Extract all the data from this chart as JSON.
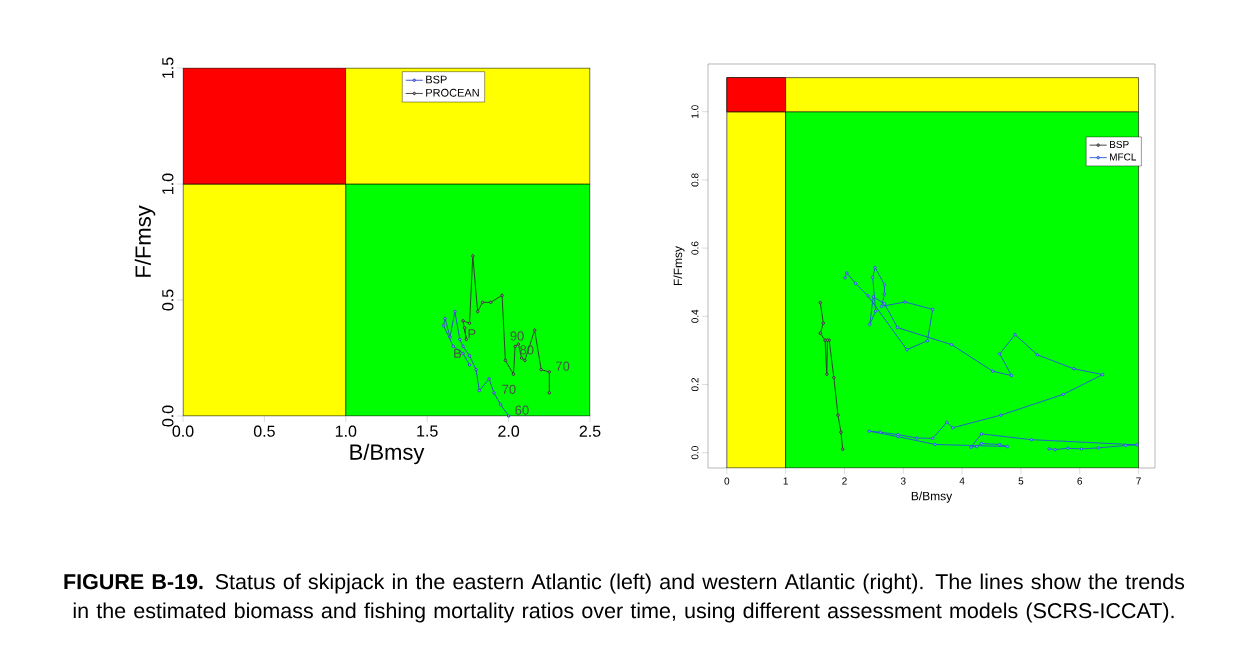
{
  "chart_data": [
    {
      "type": "line",
      "xlabel": "B/Bmsy",
      "ylabel": "F/Fmsy",
      "xlim": [
        0,
        2.5
      ],
      "ylim": [
        0,
        1.5
      ],
      "xticks": [
        {
          "value": 0,
          "label": "0.0"
        },
        {
          "value": 0.5,
          "label": "0.5"
        },
        {
          "value": 1,
          "label": "1.0"
        },
        {
          "value": 1.5,
          "label": "1.5"
        },
        {
          "value": 2,
          "label": "2.0"
        },
        {
          "value": 2.5,
          "label": "2.5"
        }
      ],
      "yticks": [
        {
          "value": 0,
          "label": "0.0"
        },
        {
          "value": 0.5,
          "label": "0.5"
        },
        {
          "value": 1,
          "label": "1.0"
        },
        {
          "value": 1.5,
          "label": "1.5"
        }
      ],
      "marker": "circle",
      "line_style": "solid",
      "legend": "top",
      "bands": [
        {
          "axis": "x",
          "from": 0,
          "to": 1,
          "color": "#ffff00"
        },
        {
          "axis": "x",
          "from": 1,
          "to": 2.5,
          "color": "#00ff00"
        },
        {
          "axis": "y",
          "from": 1,
          "to": 1.5,
          "color": "#ffff00"
        },
        {
          "axis": "x",
          "from": 0,
          "to": 1,
          "color": "#ff0000"
        }
      ],
      "series": [
        {
          "name": "BSP",
          "color": "#3344cc",
          "x": [
            2.0,
            1.95,
            1.91,
            1.88,
            1.82,
            1.8,
            1.76,
            1.72,
            1.7,
            1.67,
            1.64,
            1.61,
            1.6,
            1.66,
            1.72,
            1.76
          ],
          "values": [
            0.0,
            0.05,
            0.1,
            0.16,
            0.11,
            0.2,
            0.26,
            0.3,
            0.33,
            0.45,
            0.34,
            0.42,
            0.39,
            0.3,
            0.27,
            0.22
          ]
        },
        {
          "name": "PROCEAN",
          "color": "#333333",
          "x": [
            2.25,
            2.25,
            2.2,
            2.16,
            2.1,
            2.08,
            2.06,
            2.04,
            2.03,
            1.98,
            1.96,
            1.89,
            1.84,
            1.81,
            1.78,
            1.76,
            1.72,
            1.74,
            1.73
          ],
          "values": [
            0.1,
            0.19,
            0.2,
            0.37,
            0.24,
            0.25,
            0.31,
            0.3,
            0.18,
            0.24,
            0.52,
            0.49,
            0.49,
            0.45,
            0.69,
            0.4,
            0.41,
            0.33,
            0.38
          ]
        }
      ],
      "annotations": [
        {
          "text": "60",
          "x": 2.03,
          "y": 0.0
        },
        {
          "text": "70",
          "x": 1.95,
          "y": 0.09
        },
        {
          "text": "90",
          "x": 2.0,
          "y": 0.32
        },
        {
          "text": "80",
          "x": 2.06,
          "y": 0.26
        },
        {
          "text": "70",
          "x": 2.28,
          "y": 0.19
        },
        {
          "text": "B",
          "x": 1.72,
          "y": 0.27
        },
        {
          "text": "P",
          "x": 1.74,
          "y": 0.33
        },
        "**FIGURE B-19.** Status of skipjack in the eastern Atlantic (left) and western Atlantic (right). The lines show the trends in the estimated biomass and fishing mortality ratios over time, using different assessment models (SCRS-ICCAT)."
      ]
    },
    {
      "type": "line",
      "xlabel": "B/Bmsy",
      "ylabel": "F/Fmsy",
      "xlim": [
        -0.32,
        7.28
      ],
      "ylim": [
        -0.045,
        1.14
      ],
      "xticks": [
        0,
        1,
        2,
        3,
        4,
        5,
        6,
        7
      ],
      "yticks": [
        {
          "value": 0,
          "label": "0.0"
        },
        {
          "value": 0.2,
          "label": "0.2"
        },
        {
          "value": 0.4,
          "label": "0.4"
        },
        {
          "value": 0.6,
          "label": "0.6"
        },
        {
          "value": 0.8,
          "label": "0.8"
        },
        {
          "value": 1,
          "label": "1.0"
        }
      ],
      "marker": "circle",
      "line_style": "solid",
      "legend": "top right",
      "bands": [
        {
          "axis": "x",
          "from": 0,
          "to": 1,
          "color": "#ffff00"
        },
        {
          "axis": "x",
          "from": 1,
          "to": 7,
          "color": "#00ff00"
        },
        {
          "axis": "y",
          "from": 1,
          "to": 1.1,
          "color": "#ffff00"
        },
        {
          "axis": "x",
          "from": 0,
          "to": 1,
          "color": "#ff0000"
        }
      ],
      "series": [
        {
          "name": "BSP",
          "color": "#333333",
          "x": [
            1.97,
            1.94,
            1.89,
            1.82,
            1.74,
            1.71,
            1.7,
            1.67,
            1.59,
            1.64,
            1.59
          ],
          "values": [
            0.01,
            0.06,
            0.11,
            0.22,
            0.33,
            0.33,
            0.23,
            0.33,
            0.35,
            0.38,
            0.44
          ]
        },
        {
          "name": "MFCL",
          "color": "#2255dd",
          "x": [
            5.48,
            5.58,
            5.8,
            6.03,
            6.32,
            6.78,
            6.97,
            5.18,
            4.33,
            4.15,
            4.25,
            4.33,
            4.64,
            4.77,
            3.54,
            2.91,
            2.42,
            2.61,
            2.91,
            3.23,
            3.5,
            3.74,
            3.84,
            4.66,
            5.72,
            6.39,
            5.9,
            5.28,
            4.9,
            4.64,
            4.84,
            4.52,
            3.82,
            2.9,
            2.68,
            2.49,
            2.43,
            2.53,
            2.48,
            2.52,
            2.68,
            2.68,
            2.63,
            3.03,
            3.5,
            3.41,
            3.06,
            2.4,
            2.19,
            2.04,
            2.01
          ],
          "values": [
            0.011,
            0.009,
            0.013,
            0.011,
            0.014,
            0.021,
            0.023,
            0.038,
            0.055,
            0.016,
            0.018,
            0.027,
            0.024,
            0.018,
            0.024,
            0.047,
            0.063,
            0.06,
            0.053,
            0.043,
            0.042,
            0.089,
            0.073,
            0.11,
            0.171,
            0.229,
            0.246,
            0.287,
            0.346,
            0.29,
            0.226,
            0.239,
            0.317,
            0.367,
            0.437,
            0.457,
            0.376,
            0.415,
            0.514,
            0.543,
            0.493,
            0.465,
            0.429,
            0.442,
            0.42,
            0.328,
            0.302,
            0.46,
            0.496,
            0.527,
            0.513
          ]
        }
      ]
    }
  ]
}
